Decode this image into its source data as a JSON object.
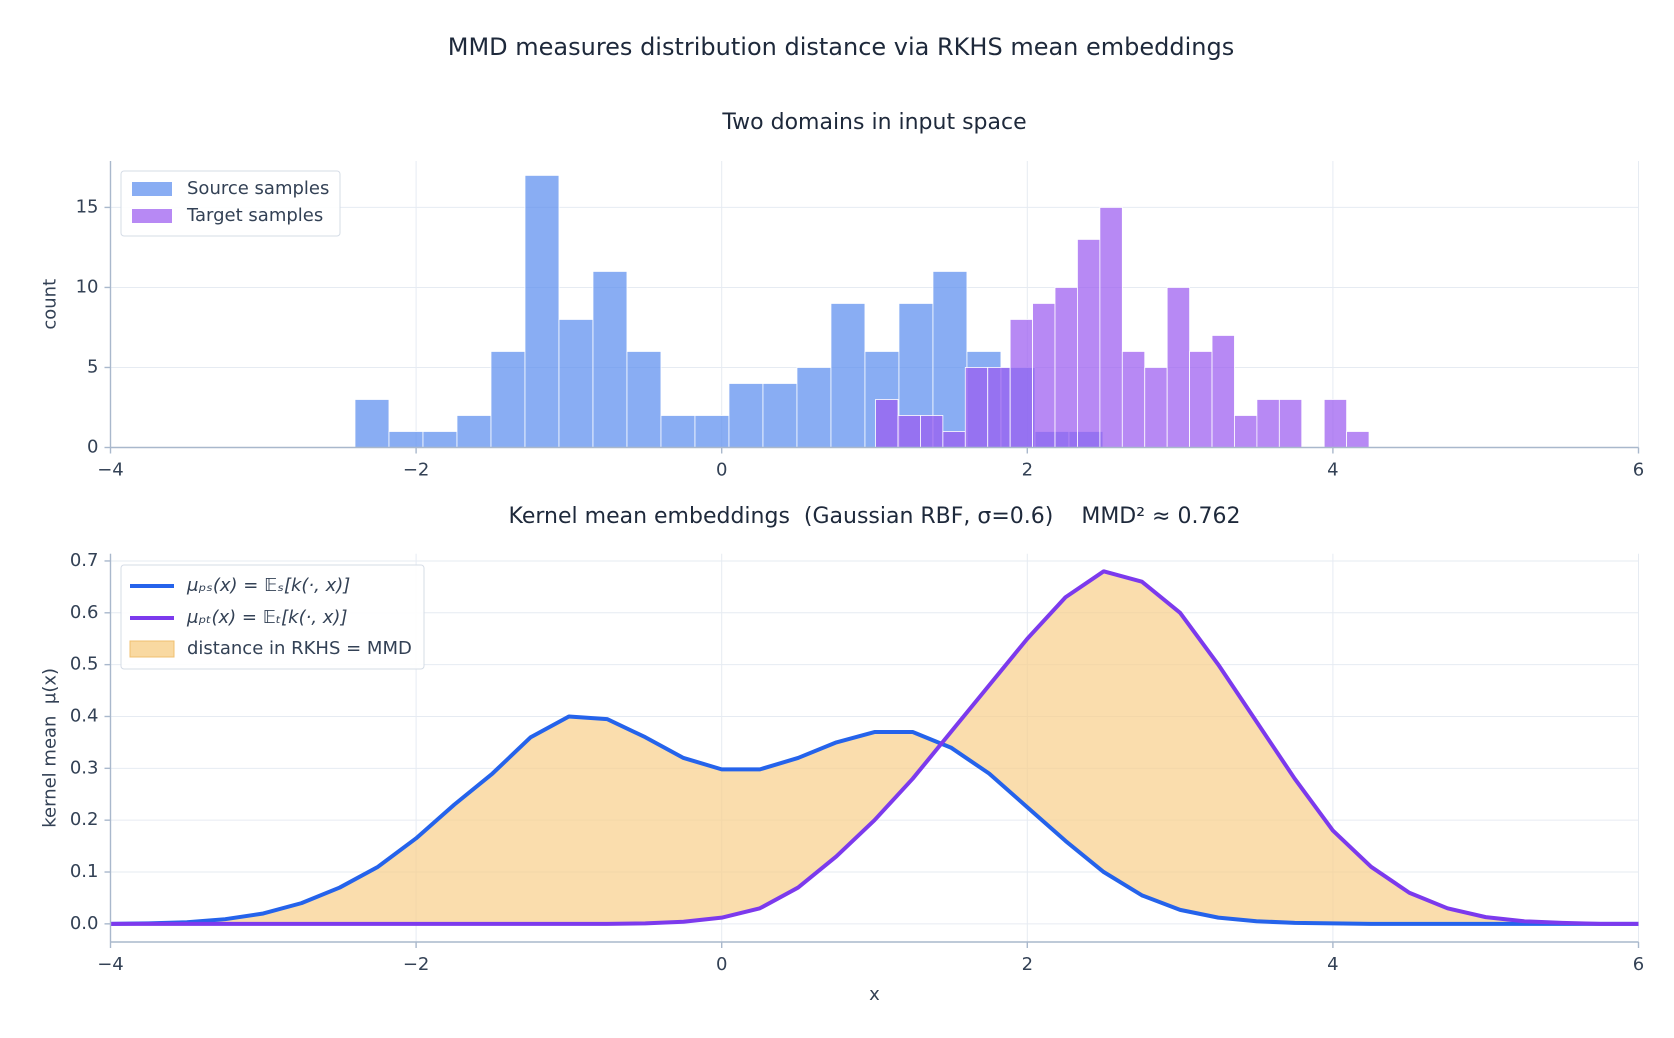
{
  "title": "MMD measures distribution distance via RKHS mean embeddings",
  "chart_data": [
    {
      "type": "histogram",
      "title": "Two domains in input space",
      "ylabel": "count",
      "xlim": [
        -4,
        6
      ],
      "xticks": [
        {
          "value": -4,
          "label": "−4"
        },
        {
          "value": -2,
          "label": "−2"
        },
        0,
        2,
        4,
        6
      ],
      "ylim": [
        0,
        17.9
      ],
      "yticks": [
        0,
        5,
        10,
        15
      ],
      "grid": true,
      "legend": "upper left",
      "series": [
        {
          "name": "Source samples",
          "color": "#5b8def",
          "bins": [
            -2.4,
            -2.1775,
            -1.955,
            -1.7325,
            -1.51,
            -1.2875,
            -1.065,
            -0.8425,
            -0.62,
            -0.3975,
            -0.175,
            0.0475,
            0.27,
            0.4925,
            0.715,
            0.9375,
            1.16,
            1.3825,
            1.605,
            1.8275,
            2.05,
            2.2725,
            2.495
          ],
          "values": [
            3,
            1,
            1,
            2,
            6,
            17,
            8,
            11,
            6,
            2,
            2,
            4,
            4,
            5,
            9,
            6,
            9,
            11,
            6,
            5,
            1,
            1
          ]
        },
        {
          "name": "Target samples",
          "color": "#9b5cf0",
          "bins": [
            1.007,
            1.1538,
            1.3006,
            1.4474,
            1.5942,
            1.741,
            1.8878,
            2.0346,
            2.1814,
            2.3282,
            2.475,
            2.6218,
            2.7686,
            2.9154,
            3.0622,
            3.209,
            3.3558,
            3.5026,
            3.6494,
            3.7962,
            3.943,
            4.0898,
            4.2366
          ],
          "values": [
            3,
            2,
            2,
            1,
            5,
            5,
            8,
            9,
            10,
            13,
            15,
            6,
            5,
            10,
            6,
            7,
            2,
            3,
            3,
            0,
            3,
            1
          ]
        }
      ]
    },
    {
      "type": "line",
      "title": "Kernel mean embeddings  (Gaussian RBF, σ=0.6)    MMD² ≈ 0.762",
      "xlabel": "x",
      "ylabel": "kernel mean  μ(x)",
      "xlim": [
        -4,
        6
      ],
      "xticks": [
        {
          "value": -4,
          "label": "−4"
        },
        {
          "value": -2,
          "label": "−2"
        },
        0,
        2,
        4,
        6
      ],
      "ylim": [
        -0.035,
        0.714
      ],
      "yticks": [
        {
          "value": 0,
          "label": "0.0"
        },
        0.1,
        0.2,
        0.3,
        0.4,
        0.5,
        0.6,
        0.7
      ],
      "grid": true,
      "legend": "upper left",
      "x": [
        -4,
        -3.75,
        -3.5,
        -3.25,
        -3,
        -2.75,
        -2.5,
        -2.25,
        -2,
        -1.75,
        -1.5,
        -1.25,
        -1,
        -0.75,
        -0.5,
        -0.25,
        0,
        0.25,
        0.5,
        0.75,
        1,
        1.25,
        1.5,
        1.75,
        2,
        2.25,
        2.5,
        2.75,
        3,
        3.25,
        3.5,
        3.75,
        4,
        4.25,
        4.5,
        4.75,
        5,
        5.25,
        5.5,
        5.75,
        6
      ],
      "series": [
        {
          "name": "μₚₛ(x) = 𝔼ₛ[k(·, x)]",
          "color": "#2563eb",
          "values": [
            0.0,
            0.001,
            0.003,
            0.009,
            0.02,
            0.04,
            0.07,
            0.11,
            0.165,
            0.23,
            0.29,
            0.36,
            0.4,
            0.395,
            0.36,
            0.32,
            0.298,
            0.298,
            0.32,
            0.35,
            0.37,
            0.37,
            0.34,
            0.29,
            0.225,
            0.16,
            0.1,
            0.055,
            0.027,
            0.012,
            0.005,
            0.002,
            0.001,
            0.0,
            0.0,
            0.0,
            0.0,
            0.0,
            0.0,
            0.0,
            0.0
          ]
        },
        {
          "name": "μₚₜ(x) = 𝔼ₜ[k(·, x)]",
          "color": "#7c3aed",
          "values": [
            0.0,
            0.0,
            0.0,
            0.0,
            0.0,
            0.0,
            0.0,
            0.0,
            0.0,
            0.0,
            0.0,
            0.0,
            0.0,
            0.0,
            0.001,
            0.004,
            0.012,
            0.03,
            0.07,
            0.13,
            0.2,
            0.28,
            0.37,
            0.46,
            0.55,
            0.63,
            0.68,
            0.66,
            0.6,
            0.5,
            0.39,
            0.28,
            0.18,
            0.11,
            0.06,
            0.03,
            0.013,
            0.005,
            0.002,
            0.0,
            0.0
          ]
        }
      ],
      "fill": {
        "name": "distance in RKHS = MMD",
        "color": "#f8cf8a"
      }
    }
  ]
}
